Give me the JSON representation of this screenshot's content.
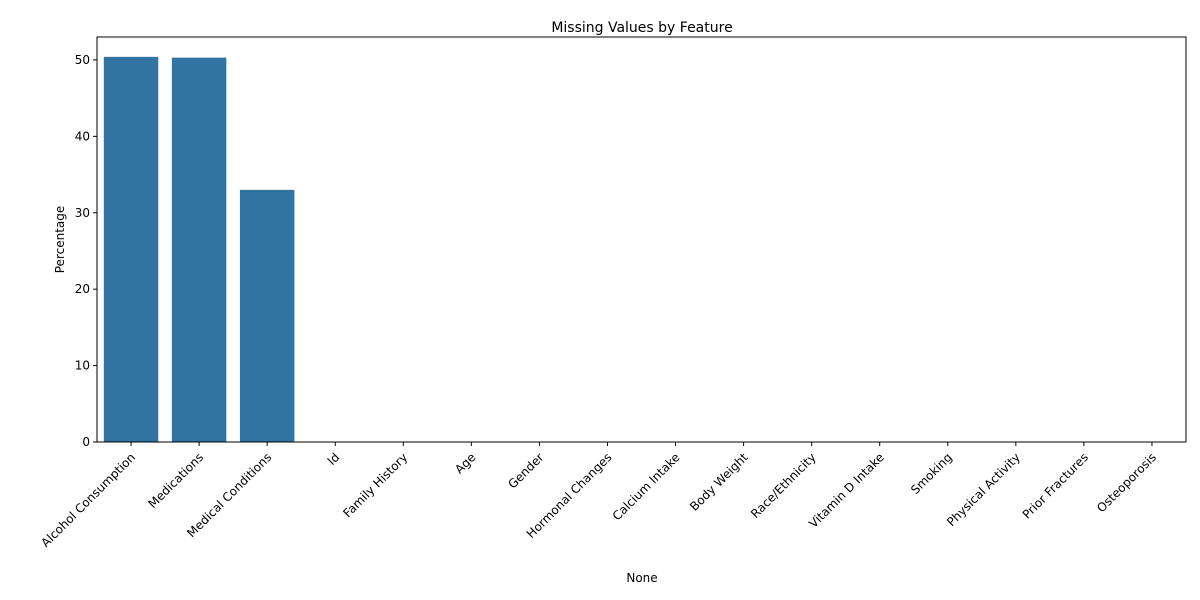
{
  "chart_data": {
    "type": "bar",
    "title": "Missing Values by Feature",
    "xlabel": "None",
    "ylabel": "Percentage",
    "categories": [
      "Alcohol Consumption",
      "Medications",
      "Medical Conditions",
      "Id",
      "Family History",
      "Age",
      "Gender",
      "Hormonal Changes",
      "Calcium Intake",
      "Body Weight",
      "Race/Ethnicity",
      "Vitamin D Intake",
      "Smoking",
      "Physical Activity",
      "Prior Fractures",
      "Osteoporosis"
    ],
    "values": [
      50.4,
      50.3,
      33.0,
      0,
      0,
      0,
      0,
      0,
      0,
      0,
      0,
      0,
      0,
      0,
      0,
      0
    ],
    "ylim": [
      0,
      53
    ],
    "yticks": [
      0,
      10,
      20,
      30,
      40,
      50
    ],
    "bar_color": "#3274a1",
    "grid": false,
    "legend": "none"
  }
}
